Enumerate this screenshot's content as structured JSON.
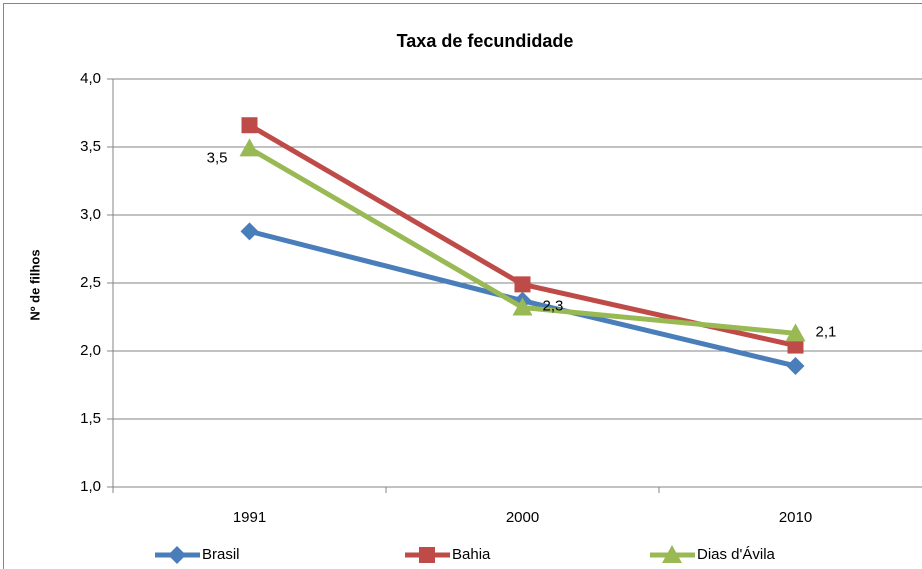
{
  "chart_data": {
    "type": "line",
    "title": "Taxa de fecundidade",
    "y_label": "Nº de filhos",
    "categories": [
      "1991",
      "2000",
      "2010"
    ],
    "series": [
      {
        "name": "Brasil",
        "color": "#4a7ebb",
        "marker": "diamond",
        "values": [
          2.88,
          2.37,
          1.89
        ]
      },
      {
        "name": "Bahia",
        "color": "#be4b48",
        "marker": "square",
        "values": [
          3.66,
          2.49,
          2.04
        ]
      },
      {
        "name": "Dias d'Ávila",
        "color": "#98b954",
        "marker": "triangle",
        "values": [
          3.49,
          2.32,
          2.13
        ],
        "value_labels": [
          "3,5",
          "2,3",
          "2,1"
        ]
      }
    ],
    "ylim": [
      1.0,
      4.0
    ],
    "yticks": [
      {
        "value": 1.0,
        "label": "1,0"
      },
      {
        "value": 1.5,
        "label": "1,5"
      },
      {
        "value": 2.0,
        "label": "2,0"
      },
      {
        "value": 2.5,
        "label": "2,5"
      },
      {
        "value": 3.0,
        "label": "3,0"
      },
      {
        "value": 3.5,
        "label": "3,5"
      },
      {
        "value": 4.0,
        "label": "4,0"
      }
    ],
    "grid": true,
    "legend": "bottom"
  }
}
